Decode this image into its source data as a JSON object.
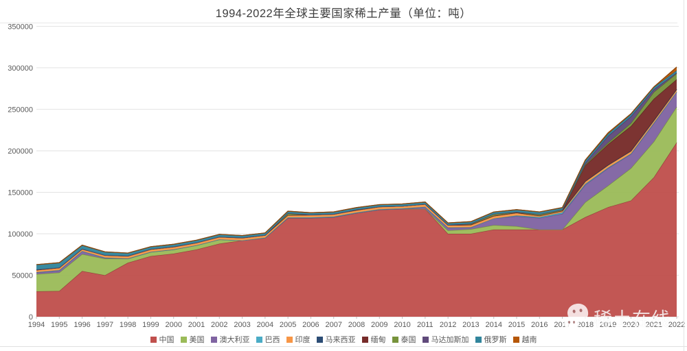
{
  "header": {
    "title": "1994-2022年全球主要国家稀土产量（单位：吨）"
  },
  "watermark": {
    "text": "稀土在线",
    "icon": "wechat-bubbles-icon"
  },
  "style": {
    "axis_text_color": "#595959",
    "gridline_color": "#e2e2e2",
    "title_color": "#3d3d3d"
  },
  "chart_data": {
    "type": "area",
    "stacked": true,
    "title": "1994-2022年全球主要国家稀土产量（单位：吨）",
    "unit": "吨",
    "xlabel": "",
    "ylabel": "",
    "ylim": [
      0,
      350000
    ],
    "ytick_step": 50000,
    "yticks": [
      0,
      50000,
      100000,
      150000,
      200000,
      250000,
      300000,
      350000
    ],
    "grid": true,
    "legend_position": "bottom",
    "years": [
      1994,
      1995,
      1996,
      1997,
      1998,
      1999,
      2000,
      2001,
      2002,
      2003,
      2004,
      2005,
      2006,
      2007,
      2008,
      2009,
      2010,
      2011,
      2012,
      2013,
      2014,
      2015,
      2016,
      2017,
      2018,
      2019,
      2020,
      2021,
      2022
    ],
    "series": [
      {
        "name": "中国",
        "color": "#C0504D",
        "values": [
          30600,
          31000,
          55000,
          50000,
          65000,
          73000,
          76000,
          81000,
          88000,
          92000,
          95000,
          119000,
          119000,
          120000,
          125000,
          129000,
          130000,
          130000,
          100000,
          100000,
          105000,
          105000,
          105000,
          105000,
          120000,
          132000,
          140000,
          168000,
          210000
        ]
      },
      {
        "name": "美国",
        "color": "#9BBB59",
        "values": [
          20700,
          22200,
          20400,
          20000,
          5000,
          5000,
          5000,
          5000,
          5000,
          0,
          0,
          0,
          0,
          0,
          0,
          0,
          0,
          0,
          4000,
          5500,
          5400,
          4100,
          0,
          0,
          18000,
          26000,
          39000,
          43000,
          43000
        ]
      },
      {
        "name": "澳大利亚",
        "color": "#8064A2",
        "values": [
          2000,
          2500,
          3500,
          1000,
          0,
          0,
          0,
          0,
          0,
          0,
          0,
          0,
          0,
          0,
          0,
          0,
          0,
          2200,
          3200,
          2000,
          8000,
          12000,
          14000,
          19000,
          21000,
          21000,
          17000,
          22000,
          18000
        ]
      },
      {
        "name": "巴西",
        "color": "#4BACC6",
        "values": [
          400,
          400,
          200,
          200,
          200,
          200,
          200,
          200,
          200,
          0,
          300,
          650,
          730,
          640,
          550,
          550,
          550,
          250,
          300,
          330,
          0,
          880,
          1100,
          1700,
          1100,
          710,
          600,
          500,
          80
        ]
      },
      {
        "name": "印度",
        "color": "#F79646",
        "values": [
          2500,
          2700,
          2200,
          2700,
          2700,
          2700,
          2700,
          2700,
          2700,
          2700,
          2700,
          2700,
          2700,
          2700,
          2700,
          2700,
          2800,
          3000,
          2900,
          2900,
          3000,
          3000,
          1500,
          1800,
          2900,
          3000,
          3000,
          2900,
          2900
        ]
      },
      {
        "name": "马来西亚",
        "color": "#2C4D75",
        "values": [
          240,
          240,
          425,
          300,
          350,
          450,
          450,
          350,
          350,
          450,
          250,
          150,
          430,
          380,
          380,
          380,
          30,
          280,
          100,
          180,
          240,
          500,
          300,
          180,
          200,
          80,
          80,
          80,
          80
        ]
      },
      {
        "name": "缅甸",
        "color": "#772C2A",
        "values": [
          0,
          0,
          0,
          0,
          0,
          0,
          0,
          0,
          0,
          0,
          0,
          0,
          0,
          0,
          0,
          0,
          0,
          0,
          0,
          0,
          0,
          0,
          0,
          0,
          19000,
          25000,
          30000,
          26000,
          12000
        ]
      },
      {
        "name": "泰国",
        "color": "#77933C",
        "values": [
          360,
          100,
          0,
          0,
          0,
          0,
          0,
          0,
          0,
          0,
          0,
          2200,
          0,
          0,
          380,
          0,
          0,
          0,
          100,
          1200,
          2100,
          760,
          1600,
          1300,
          1000,
          1900,
          3600,
          8200,
          7100
        ]
      },
      {
        "name": "马达加斯加",
        "color": "#604A7B",
        "values": [
          0,
          0,
          0,
          0,
          0,
          0,
          0,
          0,
          0,
          0,
          0,
          0,
          0,
          0,
          0,
          0,
          0,
          0,
          0,
          0,
          0,
          0,
          0,
          0,
          2000,
          8000,
          8000,
          3200,
          960
        ]
      },
      {
        "name": "俄罗斯",
        "color": "#31859C",
        "values": [
          6000,
          6000,
          4500,
          4000,
          3500,
          3000,
          3000,
          3000,
          3000,
          2700,
          2700,
          2500,
          2500,
          2500,
          2500,
          2500,
          2500,
          2500,
          2400,
          2500,
          2500,
          2800,
          2800,
          2600,
          2700,
          2700,
          2700,
          2700,
          2600
        ]
      },
      {
        "name": "越南",
        "color": "#B65708",
        "values": [
          0,
          0,
          0,
          0,
          0,
          0,
          0,
          0,
          0,
          0,
          0,
          0,
          0,
          0,
          0,
          0,
          0,
          0,
          0,
          0,
          0,
          0,
          0,
          0,
          920,
          1300,
          700,
          400,
          4300
        ]
      }
    ]
  }
}
